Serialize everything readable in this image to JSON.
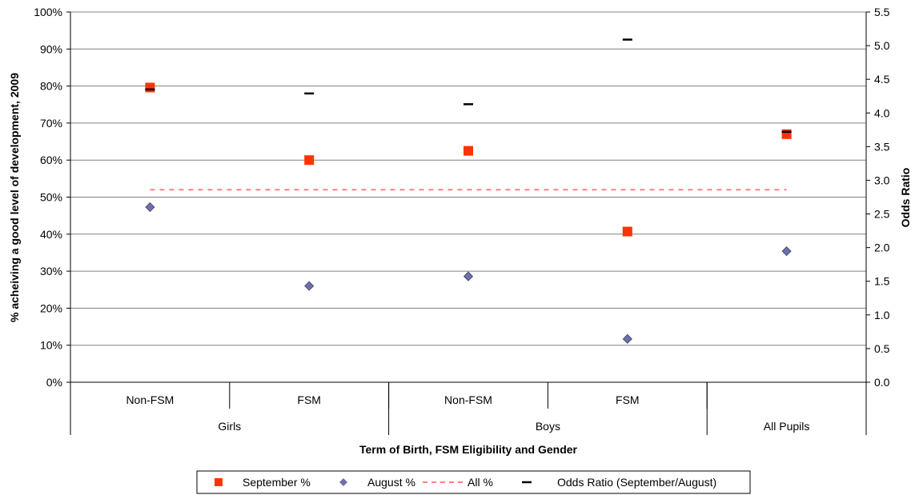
{
  "chart_data": {
    "type": "scatter",
    "xlabel": "Term of Birth, FSM Eligibility and Gender",
    "ylabel": "% acheiving a good level of development, 2009",
    "y2label": "Odds Ratio",
    "ylim": [
      0,
      100
    ],
    "y2lim": [
      0,
      5.5
    ],
    "yticks": [
      "0%",
      "10%",
      "20%",
      "30%",
      "40%",
      "50%",
      "60%",
      "70%",
      "80%",
      "90%",
      "100%"
    ],
    "y2ticks": [
      "0.0",
      "0.5",
      "1.0",
      "1.5",
      "2.0",
      "2.5",
      "3.0",
      "3.5",
      "4.0",
      "4.5",
      "5.0",
      "5.5"
    ],
    "categories": [
      "Non-FSM",
      "FSM",
      "Non-FSM",
      "FSM",
      ""
    ],
    "groups": [
      {
        "label": "Girls",
        "span": [
          0,
          1
        ]
      },
      {
        "label": "Boys",
        "span": [
          2,
          3
        ]
      },
      {
        "label": "All Pupils",
        "span": [
          4,
          4
        ]
      }
    ],
    "series": [
      {
        "name": "September %",
        "axis": "left",
        "marker": "square",
        "color": "#ff3300",
        "values": [
          79.6,
          60.0,
          62.5,
          40.7,
          67.0
        ]
      },
      {
        "name": "August %",
        "axis": "left",
        "marker": "diamond",
        "color": "#7070a8",
        "values": [
          47.3,
          26.0,
          28.6,
          11.7,
          35.4
        ]
      },
      {
        "name": "All %",
        "axis": "left",
        "marker": "dashed-line",
        "color": "#ff8080",
        "value": 52.0
      },
      {
        "name": "Odds Ratio (September/August)",
        "axis": "right",
        "marker": "dash",
        "color": "#000000",
        "values": [
          4.35,
          4.29,
          4.13,
          5.09,
          3.72
        ]
      }
    ],
    "grid": true,
    "legend": "bottom"
  }
}
